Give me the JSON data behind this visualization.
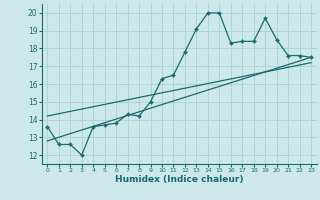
{
  "xlabel": "Humidex (Indice chaleur)",
  "ylabel": "",
  "bg_color": "#cce8ea",
  "grid_color": "#b0d4d6",
  "line_color": "#1a6b6b",
  "xlim": [
    -0.5,
    23.5
  ],
  "ylim": [
    11.5,
    20.5
  ],
  "xticks": [
    0,
    1,
    2,
    3,
    4,
    5,
    6,
    7,
    8,
    9,
    10,
    11,
    12,
    13,
    14,
    15,
    16,
    17,
    18,
    19,
    20,
    21,
    22,
    23
  ],
  "yticks": [
    12,
    13,
    14,
    15,
    16,
    17,
    18,
    19,
    20
  ],
  "series1_x": [
    0,
    1,
    2,
    3,
    4,
    5,
    6,
    7,
    8,
    9,
    10,
    11,
    12,
    13,
    14,
    15,
    16,
    17,
    18,
    19,
    20,
    21,
    22,
    23
  ],
  "series1_y": [
    13.6,
    12.6,
    12.6,
    12.0,
    13.6,
    13.7,
    13.8,
    14.3,
    14.2,
    15.0,
    16.3,
    16.5,
    17.8,
    19.1,
    20.0,
    20.0,
    18.3,
    18.4,
    18.4,
    19.7,
    18.5,
    17.6,
    17.6,
    17.5
  ],
  "series2_x": [
    0,
    23
  ],
  "series2_y": [
    12.8,
    17.5
  ],
  "series3_x": [
    0,
    23
  ],
  "series3_y": [
    14.2,
    17.2
  ]
}
